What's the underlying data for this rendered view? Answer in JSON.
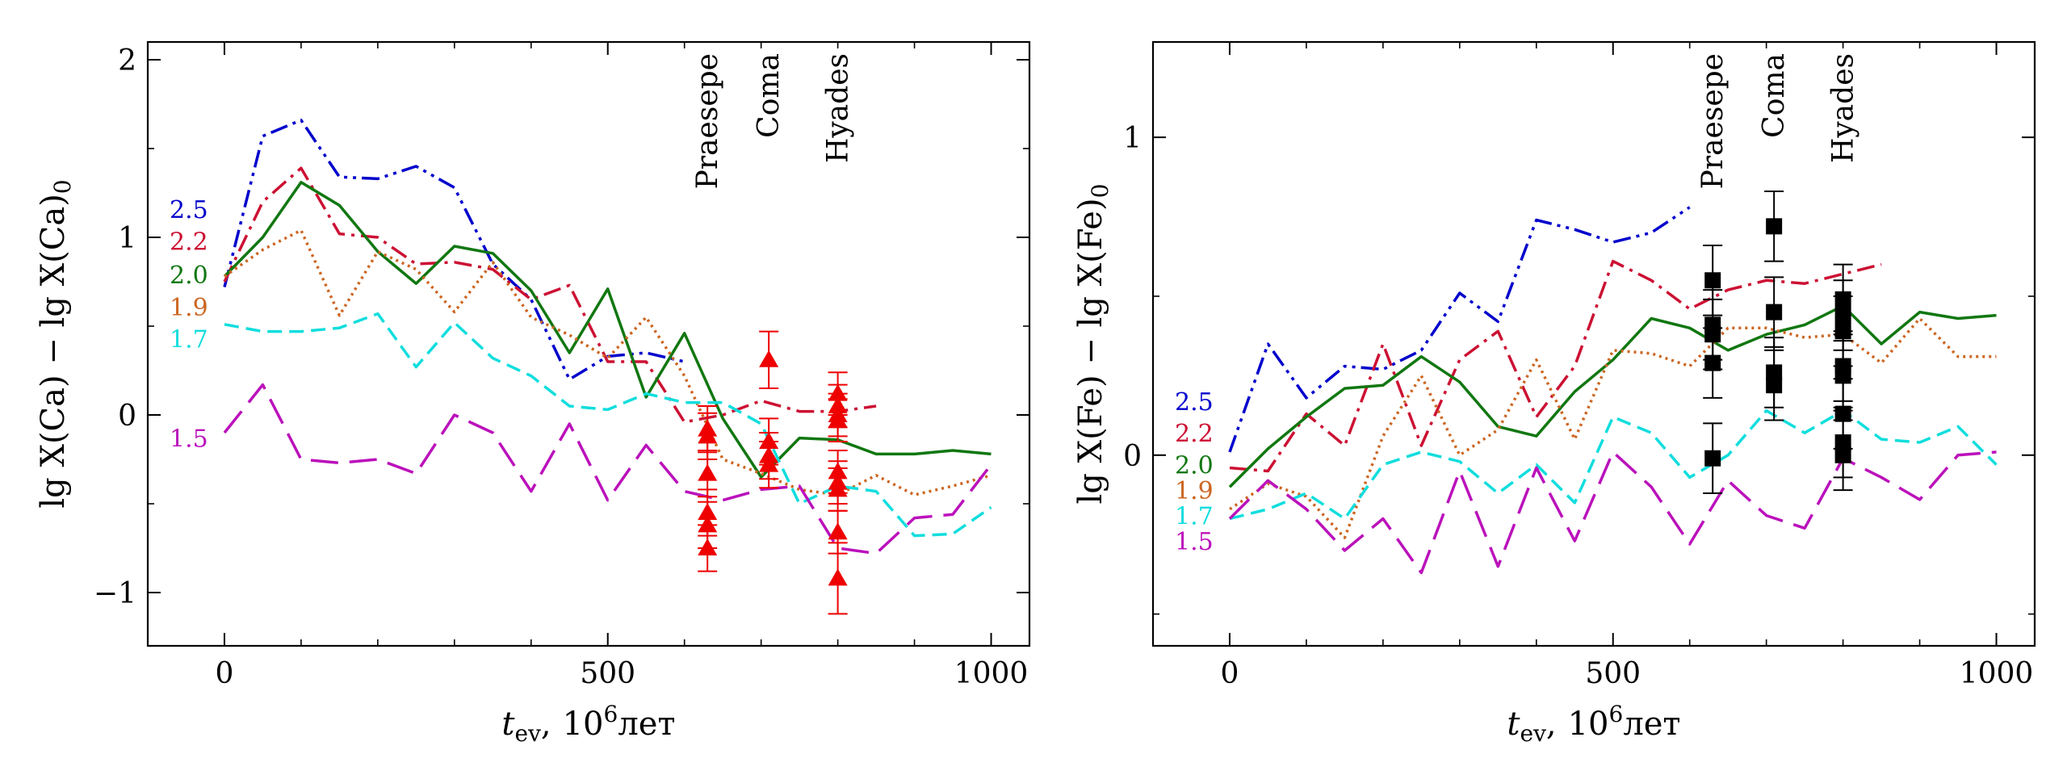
{
  "chart_data": [
    {
      "type": "line",
      "xlabel": "t_ev, 10^6 лет",
      "xlabel_parts": {
        "t": "t",
        "sub": "ev",
        "sep": ",",
        "base": "10",
        "exp": "6",
        "unit": "лет"
      },
      "ylabel": "lg X(Ca) − lg X(Ca)_0",
      "ylabel_parts": {
        "main": "lg X(Ca) − lg X(Ca)",
        "sub": "0"
      },
      "xlim": [
        -100,
        1050
      ],
      "ylim": [
        -1.3,
        2.1
      ],
      "xticks": [
        0,
        500,
        1000
      ],
      "yticks": [
        -1,
        0,
        1,
        2
      ],
      "grid": false,
      "series": [
        {
          "name": "2.5",
          "color": "#0000cc",
          "dash": "dashdotdot",
          "x": [
            0,
            50,
            100,
            150,
            200,
            250,
            300,
            350,
            400,
            450,
            500,
            550,
            600
          ],
          "y": [
            0.72,
            1.57,
            1.66,
            1.34,
            1.33,
            1.4,
            1.28,
            0.85,
            0.65,
            0.2,
            0.33,
            0.35,
            0.3
          ]
        },
        {
          "name": "2.2",
          "color": "#cc1133",
          "dash": "dashdot",
          "x": [
            0,
            50,
            100,
            150,
            200,
            250,
            300,
            350,
            400,
            450,
            500,
            550,
            600,
            650,
            700,
            750,
            800,
            850
          ],
          "y": [
            0.75,
            1.2,
            1.39,
            1.02,
            1.0,
            0.85,
            0.86,
            0.82,
            0.65,
            0.73,
            0.3,
            0.3,
            -0.04,
            0.0,
            0.08,
            0.02,
            0.02,
            0.05
          ]
        },
        {
          "name": "2.0",
          "color": "#117711",
          "dash": "solid",
          "x": [
            0,
            50,
            100,
            150,
            200,
            250,
            300,
            350,
            400,
            450,
            500,
            550,
            600,
            650,
            700,
            750,
            800,
            850,
            900,
            950,
            1000
          ],
          "y": [
            0.78,
            1.0,
            1.31,
            1.18,
            0.92,
            0.74,
            0.95,
            0.91,
            0.7,
            0.35,
            0.71,
            0.1,
            0.46,
            -0.02,
            -0.35,
            -0.13,
            -0.14,
            -0.22,
            -0.22,
            -0.2,
            -0.22
          ]
        },
        {
          "name": "1.9",
          "color": "#cc6622",
          "dash": "dotted",
          "x": [
            0,
            50,
            100,
            150,
            200,
            250,
            300,
            350,
            400,
            450,
            500,
            550,
            600,
            650,
            700,
            750,
            800,
            850,
            900,
            950,
            1000
          ],
          "y": [
            0.78,
            0.93,
            1.04,
            0.56,
            0.92,
            0.82,
            0.58,
            0.86,
            0.55,
            0.45,
            0.32,
            0.55,
            0.22,
            -0.25,
            -0.33,
            -0.42,
            -0.45,
            -0.34,
            -0.45,
            -0.4,
            -0.34
          ]
        },
        {
          "name": "1.7",
          "color": "#11dddd",
          "dash": "dashed",
          "x": [
            0,
            50,
            100,
            150,
            200,
            250,
            300,
            350,
            400,
            450,
            500,
            550,
            600,
            650,
            700,
            750,
            800,
            850,
            900,
            950,
            1000
          ],
          "y": [
            0.51,
            0.47,
            0.47,
            0.49,
            0.57,
            0.27,
            0.52,
            0.32,
            0.22,
            0.05,
            0.03,
            0.12,
            0.07,
            0.07,
            -0.05,
            -0.5,
            -0.4,
            -0.43,
            -0.68,
            -0.67,
            -0.52
          ]
        },
        {
          "name": "1.5",
          "color": "#bb11bb",
          "dash": "longdash",
          "x": [
            0,
            50,
            100,
            150,
            200,
            250,
            300,
            350,
            400,
            450,
            500,
            550,
            600,
            650,
            700,
            750,
            800,
            850,
            900,
            950,
            1000
          ],
          "y": [
            -0.1,
            0.17,
            -0.25,
            -0.27,
            -0.25,
            -0.33,
            0.0,
            -0.1,
            -0.43,
            -0.05,
            -0.48,
            -0.17,
            -0.43,
            -0.48,
            -0.42,
            -0.4,
            -0.75,
            -0.78,
            -0.58,
            -0.56,
            -0.28
          ]
        }
      ],
      "observations": {
        "marker": "triangle",
        "color": "#ee0000",
        "points": [
          {
            "x": 630,
            "y": -0.08,
            "err": 0.13
          },
          {
            "x": 630,
            "y": -0.12,
            "err": 0.13
          },
          {
            "x": 630,
            "y": -0.33,
            "err": 0.13
          },
          {
            "x": 630,
            "y": -0.55,
            "err": 0.13
          },
          {
            "x": 630,
            "y": -0.62,
            "err": 0.13
          },
          {
            "x": 630,
            "y": -0.75,
            "err": 0.13
          },
          {
            "x": 710,
            "y": 0.31,
            "err": 0.16
          },
          {
            "x": 710,
            "y": -0.15,
            "err": 0.13
          },
          {
            "x": 710,
            "y": -0.23,
            "err": 0.13
          },
          {
            "x": 710,
            "y": -0.28,
            "err": 0.13
          },
          {
            "x": 800,
            "y": 0.12,
            "err": 0.12
          },
          {
            "x": 800,
            "y": 0.05,
            "err": 0.12
          },
          {
            "x": 800,
            "y": 0.0,
            "err": 0.12
          },
          {
            "x": 800,
            "y": -0.03,
            "err": 0.12
          },
          {
            "x": 800,
            "y": -0.32,
            "err": 0.12
          },
          {
            "x": 800,
            "y": -0.38,
            "err": 0.12
          },
          {
            "x": 800,
            "y": -0.42,
            "err": 0.12
          },
          {
            "x": 800,
            "y": -0.66,
            "err": 0.12
          },
          {
            "x": 800,
            "y": -0.92,
            "err": 0.2
          }
        ]
      },
      "clusters": [
        {
          "label": "Praesepe",
          "x": 630
        },
        {
          "label": "Coma",
          "x": 710
        },
        {
          "label": "Hyades",
          "x": 800
        }
      ],
      "mass_labels": [
        {
          "text": "2.5",
          "y": 1.16,
          "color": "#0000cc"
        },
        {
          "text": "2.2",
          "y": 0.98,
          "color": "#cc1133"
        },
        {
          "text": "2.0",
          "y": 0.79,
          "color": "#117711"
        },
        {
          "text": "1.9",
          "y": 0.61,
          "color": "#cc6622"
        },
        {
          "text": "1.7",
          "y": 0.43,
          "color": "#11dddd"
        },
        {
          "text": "1.5",
          "y": -0.13,
          "color": "#bb11bb"
        }
      ]
    },
    {
      "type": "line",
      "xlabel": "t_ev, 10^6 лет",
      "xlabel_parts": {
        "t": "t",
        "sub": "ev",
        "sep": ",",
        "base": "10",
        "exp": "6",
        "unit": "лет"
      },
      "ylabel": "lg X(Fe) − lg X(Fe)_0",
      "ylabel_parts": {
        "main": "lg X(Fe) − lg X(Fe)",
        "sub": "0"
      },
      "xlim": [
        -100,
        1050
      ],
      "ylim": [
        -0.6,
        1.3
      ],
      "xticks": [
        0,
        500,
        1000
      ],
      "yticks": [
        0,
        1
      ],
      "grid": false,
      "series": [
        {
          "name": "2.5",
          "color": "#0000cc",
          "dash": "dashdotdot",
          "x": [
            0,
            50,
            100,
            150,
            200,
            250,
            300,
            350,
            400,
            450,
            500,
            550,
            600
          ],
          "y": [
            0.01,
            0.35,
            0.18,
            0.28,
            0.27,
            0.33,
            0.51,
            0.42,
            0.74,
            0.71,
            0.67,
            0.7,
            0.78
          ]
        },
        {
          "name": "2.2",
          "color": "#cc1133",
          "dash": "dashdot",
          "x": [
            0,
            50,
            100,
            150,
            200,
            250,
            300,
            350,
            400,
            450,
            500,
            550,
            600,
            650,
            700,
            750,
            800,
            850
          ],
          "y": [
            -0.04,
            -0.05,
            0.13,
            0.03,
            0.35,
            0.03,
            0.3,
            0.39,
            0.12,
            0.28,
            0.61,
            0.55,
            0.46,
            0.52,
            0.55,
            0.54,
            0.57,
            0.6
          ]
        },
        {
          "name": "2.0",
          "color": "#117711",
          "dash": "solid",
          "x": [
            0,
            50,
            100,
            150,
            200,
            250,
            300,
            350,
            400,
            450,
            500,
            550,
            600,
            650,
            700,
            750,
            800,
            850,
            900,
            950,
            1000
          ],
          "y": [
            -0.1,
            0.02,
            0.12,
            0.21,
            0.22,
            0.31,
            0.23,
            0.09,
            0.06,
            0.2,
            0.3,
            0.43,
            0.4,
            0.33,
            0.38,
            0.41,
            0.47,
            0.35,
            0.45,
            0.43,
            0.44
          ]
        },
        {
          "name": "1.9",
          "color": "#cc6622",
          "dash": "dotted",
          "x": [
            0,
            50,
            100,
            150,
            200,
            250,
            300,
            350,
            400,
            450,
            500,
            550,
            600,
            650,
            700,
            750,
            800,
            850,
            900,
            950,
            1000
          ],
          "y": [
            -0.17,
            -0.09,
            -0.13,
            -0.26,
            0.06,
            0.25,
            0.0,
            0.08,
            0.3,
            0.05,
            0.33,
            0.32,
            0.28,
            0.4,
            0.4,
            0.37,
            0.38,
            0.29,
            0.43,
            0.31,
            0.31
          ]
        },
        {
          "name": "1.7",
          "color": "#11dddd",
          "dash": "dashed",
          "x": [
            0,
            50,
            100,
            150,
            200,
            250,
            300,
            350,
            400,
            450,
            500,
            550,
            600,
            650,
            700,
            750,
            800,
            850,
            900,
            950,
            1000
          ],
          "y": [
            -0.2,
            -0.17,
            -0.12,
            -0.2,
            -0.03,
            0.01,
            -0.02,
            -0.12,
            -0.03,
            -0.15,
            0.12,
            0.07,
            -0.07,
            0.0,
            0.14,
            0.07,
            0.14,
            0.05,
            0.04,
            0.09,
            -0.03
          ]
        },
        {
          "name": "1.5",
          "color": "#bb11bb",
          "dash": "longdash",
          "x": [
            0,
            50,
            100,
            150,
            200,
            250,
            300,
            350,
            400,
            450,
            500,
            550,
            600,
            650,
            700,
            750,
            800,
            850,
            900,
            950,
            1000
          ],
          "y": [
            -0.2,
            -0.08,
            -0.17,
            -0.3,
            -0.2,
            -0.37,
            -0.05,
            -0.35,
            -0.04,
            -0.27,
            0.01,
            -0.1,
            -0.28,
            -0.08,
            -0.19,
            -0.23,
            -0.01,
            -0.07,
            -0.14,
            0.0,
            0.01
          ]
        }
      ],
      "observations": {
        "marker": "square",
        "color": "#000000",
        "points": [
          {
            "x": 630,
            "y": 0.55,
            "err": 0.11
          },
          {
            "x": 630,
            "y": 0.41,
            "err": 0.11
          },
          {
            "x": 630,
            "y": 0.38,
            "err": 0.11
          },
          {
            "x": 630,
            "y": 0.29,
            "err": 0.11
          },
          {
            "x": 630,
            "y": -0.01,
            "err": 0.11
          },
          {
            "x": 710,
            "y": 0.72,
            "err": 0.11
          },
          {
            "x": 710,
            "y": 0.45,
            "err": 0.11
          },
          {
            "x": 710,
            "y": 0.26,
            "err": 0.11
          },
          {
            "x": 710,
            "y": 0.22,
            "err": 0.11
          },
          {
            "x": 800,
            "y": 0.49,
            "err": 0.11
          },
          {
            "x": 800,
            "y": 0.44,
            "err": 0.11
          },
          {
            "x": 800,
            "y": 0.39,
            "err": 0.11
          },
          {
            "x": 800,
            "y": 0.28,
            "err": 0.11
          },
          {
            "x": 800,
            "y": 0.25,
            "err": 0.11
          },
          {
            "x": 800,
            "y": 0.13,
            "err": 0.11
          },
          {
            "x": 800,
            "y": 0.04,
            "err": 0.11
          },
          {
            "x": 800,
            "y": 0.0,
            "err": 0.11
          }
        ]
      },
      "clusters": [
        {
          "label": "Praesepe",
          "x": 630
        },
        {
          "label": "Coma",
          "x": 710
        },
        {
          "label": "Hyades",
          "x": 800
        }
      ],
      "mass_labels": [
        {
          "text": "2.5",
          "y": 0.17,
          "color": "#0000cc"
        },
        {
          "text": "2.2",
          "y": 0.07,
          "color": "#cc1133"
        },
        {
          "text": "2.0",
          "y": -0.03,
          "color": "#117711"
        },
        {
          "text": "1.9",
          "y": -0.11,
          "color": "#cc6622"
        },
        {
          "text": "1.7",
          "y": -0.19,
          "color": "#11dddd"
        },
        {
          "text": "1.5",
          "y": -0.27,
          "color": "#bb11bb"
        }
      ]
    }
  ]
}
